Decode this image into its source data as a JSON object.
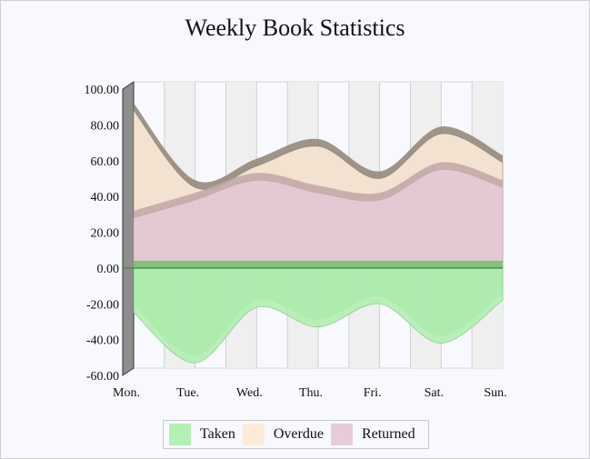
{
  "chart_data": {
    "type": "area",
    "title": "Weekly Book Statistics",
    "categories": [
      "Mon.",
      "Tue.",
      "Wed.",
      "Thu.",
      "Fri.",
      "Sat.",
      "Sun."
    ],
    "ylim": [
      -60,
      100
    ],
    "yticks": [
      "100.00",
      "80.00",
      "60.00",
      "40.00",
      "20.00",
      "0.00",
      "-20.00",
      "-40.00",
      "-60.00"
    ],
    "grid": true,
    "legend_position": "bottom",
    "series": [
      {
        "name": "Taken",
        "values": [
          -25,
          -53,
          -22,
          -33,
          -20,
          -42,
          -18
        ],
        "color": "#b3f0b3"
      },
      {
        "name": "Overdue",
        "values": [
          88,
          45,
          57,
          68,
          50,
          75,
          59
        ],
        "color": "#fdebd8"
      },
      {
        "name": "Returned",
        "values": [
          28,
          38,
          49,
          42,
          38,
          55,
          45
        ],
        "color": "#e6ccd8"
      }
    ]
  }
}
